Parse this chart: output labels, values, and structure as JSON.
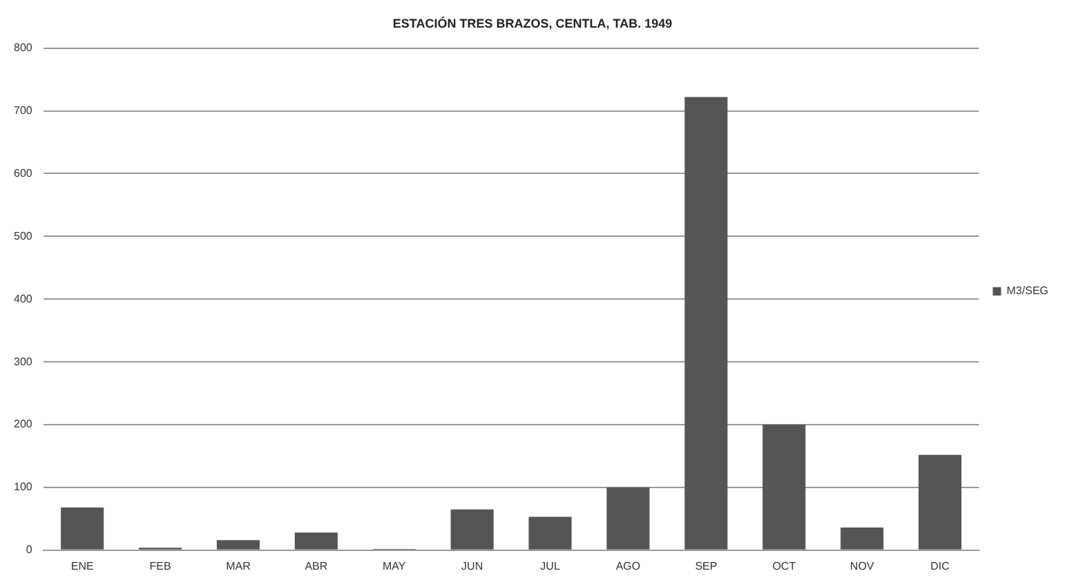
{
  "chart_data": {
    "type": "bar",
    "title": "ESTACIÓN TRES BRAZOS, CENTLA, TAB. 1949",
    "categories": [
      "ENE",
      "FEB",
      "MAR",
      "ABR",
      "MAY",
      "JUN",
      "JUL",
      "AGO",
      "SEP",
      "OCT",
      "NOV",
      "DIC"
    ],
    "series": [
      {
        "name": "M3/SEG",
        "color": "#555555",
        "values": [
          68,
          4,
          16,
          28,
          2,
          65,
          53,
          100,
          722,
          200,
          36,
          152
        ]
      }
    ],
    "ylim": [
      0,
      800
    ],
    "yticks": [
      0,
      100,
      200,
      300,
      400,
      500,
      600,
      700,
      800
    ],
    "grid": "y",
    "legend": "right"
  }
}
